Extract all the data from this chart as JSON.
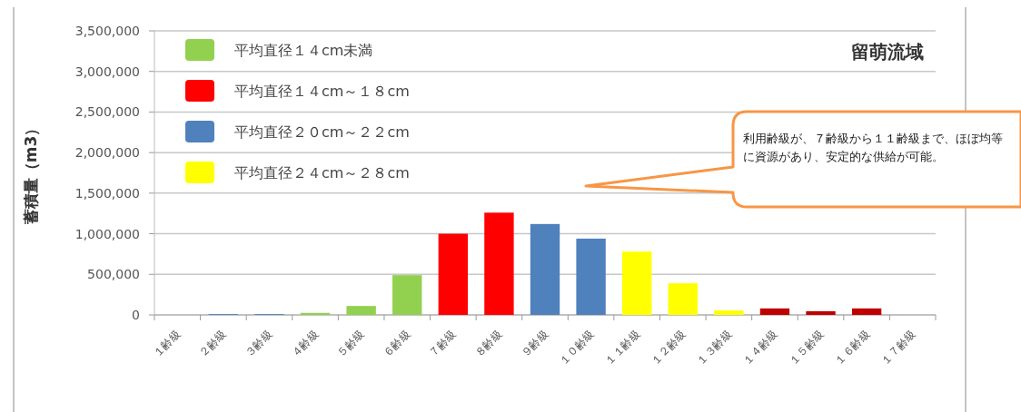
{
  "chart_data": {
    "type": "bar",
    "title": "留萌流域",
    "ylabel": "蓄積量（m3）",
    "categories": [
      "１齢級",
      "２齢級",
      "３齢級",
      "４齢級",
      "５齢級",
      "６齢級",
      "７齢級",
      "８齢級",
      "９齢級",
      "１０齢級",
      "１１齢級",
      "１２齢級",
      "１３齢級",
      "１４齢級",
      "１５齢級",
      "１６齢級",
      "１７齢級"
    ],
    "series": [
      {
        "name": "平均直径１４cm未満",
        "color": "#92d050",
        "values": [
          null,
          null,
          null,
          25000,
          110000,
          490000,
          null,
          null,
          null,
          null,
          null,
          null,
          null,
          null,
          null,
          null,
          null
        ]
      },
      {
        "name": "平均直径１４cm～１８cm",
        "color": "#ff0000",
        "values": [
          null,
          null,
          null,
          null,
          null,
          null,
          1000000,
          1260000,
          null,
          null,
          null,
          null,
          null,
          null,
          null,
          null,
          null
        ]
      },
      {
        "name": "平均直径２０cm～２２cm",
        "color": "#4f81bd",
        "values": [
          null,
          10000,
          10000,
          null,
          null,
          null,
          null,
          null,
          1120000,
          940000,
          null,
          null,
          null,
          null,
          null,
          null,
          null
        ]
      },
      {
        "name": "平均直径２４cm～２８cm",
        "color": "#ffff00",
        "values": [
          null,
          null,
          null,
          null,
          null,
          null,
          null,
          null,
          null,
          null,
          780000,
          390000,
          55000,
          null,
          null,
          null,
          null
        ]
      },
      {
        "color": "#c00000",
        "values": [
          null,
          null,
          null,
          null,
          null,
          null,
          null,
          null,
          null,
          null,
          null,
          null,
          null,
          80000,
          45000,
          80000,
          null
        ]
      }
    ],
    "ylim": [
      0,
      3500000
    ],
    "yticks": [
      {
        "value": 0,
        "label": "0"
      },
      {
        "value": 500000,
        "label": "500,000"
      },
      {
        "value": 1000000,
        "label": "1,000,000"
      },
      {
        "value": 1500000,
        "label": "1,500,000"
      },
      {
        "value": 2000000,
        "label": "2,000,000"
      },
      {
        "value": 2500000,
        "label": "2,500,000"
      },
      {
        "value": 3000000,
        "label": "3,000,000"
      },
      {
        "value": 3500000,
        "label": "3,500,000"
      }
    ],
    "grid": "y",
    "legend": "top left",
    "annotations": [
      "利用齢級が、７齢級から１１齢級まで、ほぼ均等に資源があり、安定的な供給が可能。"
    ]
  }
}
